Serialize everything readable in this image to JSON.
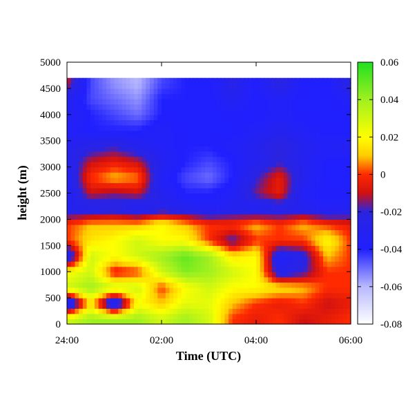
{
  "chart_data": {
    "type": "heatmap",
    "xlabel": "Time (UTC)",
    "ylabel": "height (m)",
    "x_ticks": [
      "24:00",
      "02:00",
      "04:00",
      "06:00"
    ],
    "xlim_hours": [
      0,
      6
    ],
    "ylim": [
      0,
      5000
    ],
    "y_ticks": [
      0,
      500,
      1000,
      1500,
      2000,
      2500,
      3000,
      3500,
      4000,
      4500,
      5000
    ],
    "data_top_height": 4700,
    "colorbar": {
      "range": [
        -0.08,
        0.06
      ],
      "ticks": [
        0.06,
        0.04,
        0.02,
        0,
        -0.02,
        -0.04,
        -0.06,
        -0.08
      ],
      "tick_labels": [
        "0.06",
        "0.04",
        "0.02",
        "0",
        "-0.02",
        "-0.04",
        "-0.06",
        "-0.08"
      ],
      "palette": [
        {
          "v": -0.08,
          "color": "#ffffff"
        },
        {
          "v": -0.06,
          "color": "#b8b8ff"
        },
        {
          "v": -0.04,
          "color": "#2020ff"
        },
        {
          "v": -0.02,
          "color": "#2a24e0"
        },
        {
          "v": -0.01,
          "color": "#d01010"
        },
        {
          "v": 0.0,
          "color": "#ff2a00"
        },
        {
          "v": 0.01,
          "color": "#ffcc00"
        },
        {
          "v": 0.02,
          "color": "#ffff00"
        },
        {
          "v": 0.04,
          "color": "#a0f020"
        },
        {
          "v": 0.06,
          "color": "#20e020"
        }
      ]
    },
    "control_grid": {
      "times_hours": [
        0,
        0.5,
        1,
        1.5,
        2,
        2.5,
        3,
        3.5,
        4,
        4.5,
        5,
        5.5,
        6
      ],
      "heights_m": [
        100,
        400,
        700,
        1000,
        1300,
        1600,
        1900,
        2200,
        2500,
        2800,
        3100,
        3400,
        3700,
        4000,
        4300,
        4600
      ],
      "values": [
        [
          0.03,
          0.04,
          0.04,
          0.04,
          0.03,
          0.04,
          0.03,
          0.0,
          -0.005,
          0.0,
          -0.01,
          -0.005,
          0.0
        ],
        [
          -0.05,
          0.015,
          -0.045,
          0.02,
          0.01,
          0.025,
          0.025,
          0.01,
          0.0,
          -0.005,
          0.0,
          -0.01,
          -0.005
        ],
        [
          0.03,
          0.04,
          0.03,
          0.03,
          0.0,
          0.02,
          0.03,
          0.02,
          0.02,
          0.015,
          0.01,
          0.0,
          0.0
        ],
        [
          0.02,
          0.03,
          -0.005,
          0.0,
          0.03,
          0.045,
          0.04,
          0.03,
          0.02,
          -0.03,
          -0.02,
          0.0,
          0.0
        ],
        [
          -0.04,
          0.03,
          0.02,
          0.03,
          0.04,
          0.05,
          0.04,
          0.015,
          0.02,
          -0.035,
          -0.025,
          0.01,
          0.0
        ],
        [
          0.0,
          0.015,
          0.02,
          0.03,
          0.02,
          0.02,
          0.0,
          -0.02,
          0.0,
          0.0,
          0.0,
          0.02,
          0.0
        ],
        [
          0.0,
          0.01,
          0.01,
          0.01,
          0.02,
          0.01,
          0.0,
          0.0,
          0.01,
          0.0,
          0.01,
          0.0,
          -0.005
        ],
        [
          -0.03,
          -0.03,
          -0.025,
          -0.035,
          -0.025,
          -0.03,
          -0.035,
          -0.03,
          -0.035,
          -0.03,
          -0.03,
          -0.035,
          -0.03
        ],
        [
          -0.035,
          -0.01,
          -0.015,
          -0.01,
          -0.03,
          -0.04,
          -0.04,
          -0.035,
          -0.015,
          -0.005,
          -0.035,
          -0.04,
          -0.04
        ],
        [
          -0.035,
          0.0,
          0.01,
          0.005,
          -0.035,
          -0.045,
          -0.05,
          -0.04,
          -0.02,
          -0.005,
          -0.03,
          -0.04,
          -0.04
        ],
        [
          -0.03,
          -0.01,
          -0.005,
          -0.01,
          -0.03,
          -0.04,
          -0.045,
          -0.04,
          -0.03,
          -0.02,
          -0.03,
          -0.04,
          -0.04
        ],
        [
          -0.03,
          -0.025,
          -0.02,
          -0.03,
          -0.035,
          -0.04,
          -0.04,
          -0.035,
          -0.03,
          -0.02,
          -0.03,
          -0.035,
          -0.03
        ],
        [
          -0.035,
          -0.04,
          -0.04,
          -0.04,
          -0.035,
          -0.04,
          -0.04,
          -0.04,
          -0.035,
          -0.03,
          -0.035,
          -0.04,
          -0.04
        ],
        [
          -0.03,
          -0.04,
          -0.045,
          -0.05,
          -0.04,
          -0.04,
          -0.04,
          -0.04,
          -0.04,
          -0.035,
          -0.04,
          -0.04,
          -0.04
        ],
        [
          -0.03,
          -0.045,
          -0.05,
          -0.055,
          -0.04,
          -0.04,
          -0.04,
          -0.03,
          -0.04,
          -0.035,
          -0.04,
          -0.04,
          -0.035
        ],
        [
          -0.01,
          -0.045,
          -0.055,
          -0.06,
          -0.045,
          -0.04,
          -0.04,
          -0.025,
          -0.04,
          -0.02,
          -0.04,
          -0.04,
          -0.02
        ]
      ]
    }
  }
}
